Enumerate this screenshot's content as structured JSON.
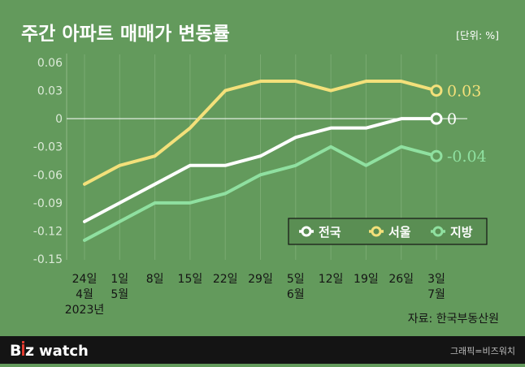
{
  "chart_data": {
    "type": "line",
    "title": "주간 아파트 매매가 변동률",
    "unit_label": "[단위: %]",
    "y_ticks": [
      "0.06",
      "0.03",
      "0",
      "-0.03",
      "-0.06",
      "-0.09",
      "-0.12",
      "-0.15"
    ],
    "ylim": [
      -0.15,
      0.06
    ],
    "x_labels": [
      [
        "24일",
        "4월",
        "2023년"
      ],
      [
        "1일",
        "5월"
      ],
      [
        "8일"
      ],
      [
        "15일"
      ],
      [
        "22일"
      ],
      [
        "29일"
      ],
      [
        "5일",
        "6월"
      ],
      [
        "12일"
      ],
      [
        "19일"
      ],
      [
        "26일"
      ],
      [
        "3일",
        "7월"
      ]
    ],
    "series": [
      {
        "name": "전국",
        "color": "#ffffff",
        "end_label": "0",
        "values": [
          -0.11,
          -0.09,
          -0.07,
          -0.05,
          -0.05,
          -0.04,
          -0.02,
          -0.01,
          -0.01,
          0.0,
          0.0
        ]
      },
      {
        "name": "서울",
        "color": "#f3e07a",
        "end_label": "0.03",
        "values": [
          -0.07,
          -0.05,
          -0.04,
          -0.01,
          0.03,
          0.04,
          0.04,
          0.03,
          0.04,
          0.04,
          0.03
        ]
      },
      {
        "name": "지방",
        "color": "#8fe0a0",
        "end_label": "-0.04",
        "values": [
          -0.13,
          -0.11,
          -0.09,
          -0.09,
          -0.08,
          -0.06,
          -0.05,
          -0.03,
          -0.05,
          -0.03,
          -0.04
        ]
      }
    ],
    "legend_position": "bottom-right",
    "grid": "vertical-lines",
    "source": "자료: 한국부동산원"
  },
  "footer": {
    "brand_b": "B",
    "brand_z": "z",
    "brand_watch": "watch",
    "credit": "그래픽=비즈워치"
  }
}
